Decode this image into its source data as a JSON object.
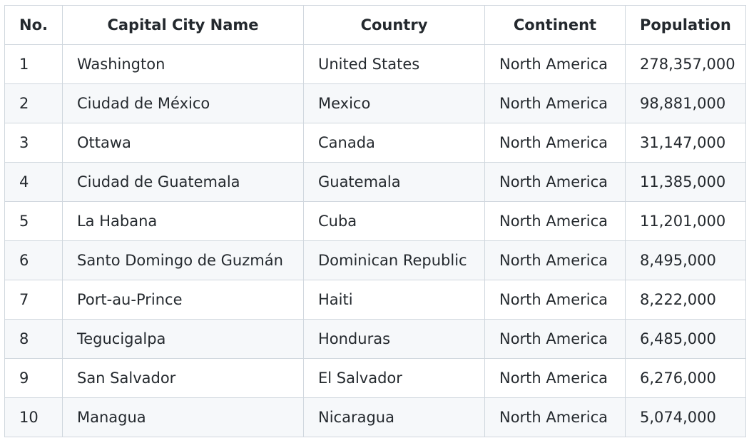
{
  "table": {
    "headers": [
      "No.",
      "Capital City Name",
      "Country",
      "Continent",
      "Population"
    ],
    "rows": [
      [
        "1",
        "Washington",
        "United States",
        "North America",
        "278,357,000"
      ],
      [
        "2",
        "Ciudad de México",
        "Mexico",
        "North America",
        "98,881,000"
      ],
      [
        "3",
        "Ottawa",
        "Canada",
        "North America",
        "31,147,000"
      ],
      [
        "4",
        "Ciudad de Guatemala",
        "Guatemala",
        "North America",
        "11,385,000"
      ],
      [
        "5",
        "La Habana",
        "Cuba",
        "North America",
        "11,201,000"
      ],
      [
        "6",
        "Santo Domingo de Guzmán",
        "Dominican Republic",
        "North America",
        "8,495,000"
      ],
      [
        "7",
        "Port-au-Prince",
        "Haiti",
        "North America",
        "8,222,000"
      ],
      [
        "8",
        "Tegucigalpa",
        "Honduras",
        "North America",
        "6,485,000"
      ],
      [
        "9",
        "San Salvador",
        "El Salvador",
        "North America",
        "6,276,000"
      ],
      [
        "10",
        "Managua",
        "Nicaragua",
        "North America",
        "5,074,000"
      ]
    ]
  }
}
